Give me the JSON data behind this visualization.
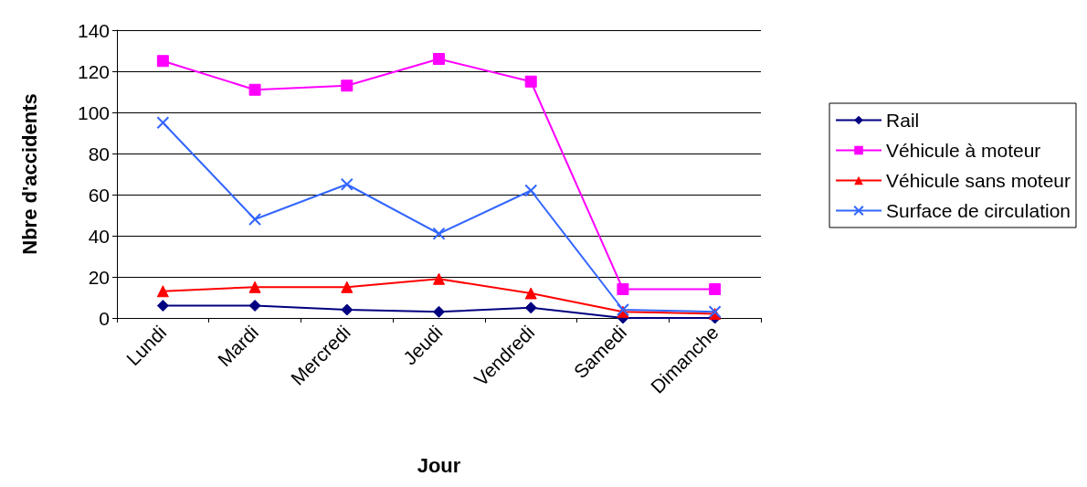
{
  "chart_data": {
    "type": "line",
    "xlabel": "Jour",
    "ylabel": "Nbre d'accidents",
    "categories": [
      "Lundi",
      "Mardi",
      "Mercredi",
      "Jeudi",
      "Vendredi",
      "Samedi",
      "Dimanche"
    ],
    "ylim": [
      0,
      140
    ],
    "yticks": [
      0,
      20,
      40,
      60,
      80,
      100,
      120,
      140
    ],
    "grid": "y",
    "legend": "right",
    "series": [
      {
        "name": "Rail",
        "color": "#000080",
        "marker": "diamond",
        "values": [
          6,
          6,
          4,
          3,
          5,
          0,
          0
        ]
      },
      {
        "name": "Véhicule à moteur",
        "color": "#ff00ff",
        "marker": "square",
        "values": [
          125,
          111,
          113,
          126,
          115,
          14,
          14
        ]
      },
      {
        "name": "Véhicule sans moteur",
        "color": "#ff0000",
        "marker": "triangle",
        "values": [
          13,
          15,
          15,
          19,
          12,
          3,
          2
        ]
      },
      {
        "name": "Surface de circulation",
        "color": "#3366ff",
        "marker": "cross",
        "values": [
          95,
          48,
          65,
          41,
          62,
          4,
          3
        ]
      }
    ]
  }
}
